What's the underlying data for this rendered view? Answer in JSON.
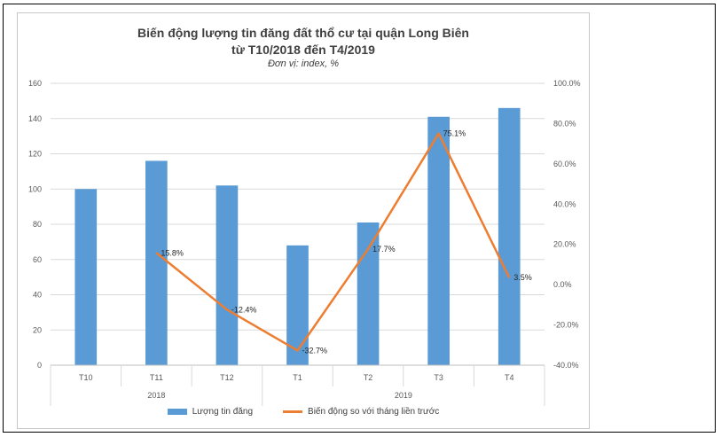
{
  "chart_data": {
    "type": "bar",
    "title": "Biến động lượng tin đăng đất thổ cư tại quận Long Biên",
    "title_line2": "từ T10/2018 đến T4/2019",
    "subtitle": "Đơn vị: index, %",
    "categories": [
      "T10",
      "T11",
      "T12",
      "T1",
      "T2",
      "T3",
      "T4"
    ],
    "category_groups": [
      {
        "label": "2018",
        "span": 3
      },
      {
        "label": "2019",
        "span": 4
      }
    ],
    "series": [
      {
        "name": "Lượng tin đăng",
        "type": "bar",
        "axis": "left",
        "color": "#5b9bd5",
        "values": [
          100,
          116,
          102,
          68,
          81,
          141,
          146
        ]
      },
      {
        "name": "Biến động so với tháng liền trước",
        "type": "line",
        "axis": "right",
        "color": "#ed7d31",
        "values": [
          null,
          15.8,
          -12.4,
          -32.7,
          17.7,
          75.1,
          3.5
        ],
        "labels": [
          "",
          "15.8%",
          "-12.4%",
          "-32.7%",
          "17.7%",
          "75.1%",
          "3.5%"
        ]
      }
    ],
    "ylim_left": [
      0,
      160
    ],
    "yticks_left": [
      "0",
      "20",
      "40",
      "60",
      "80",
      "100",
      "120",
      "140",
      "160"
    ],
    "ylim_right": [
      -40,
      100
    ],
    "yticks_right": [
      "-40.0%",
      "-20.0%",
      "0.0%",
      "20.0%",
      "40.0%",
      "60.0%",
      "80.0%",
      "100.0%"
    ],
    "grid": true,
    "legend_position": "bottom"
  }
}
